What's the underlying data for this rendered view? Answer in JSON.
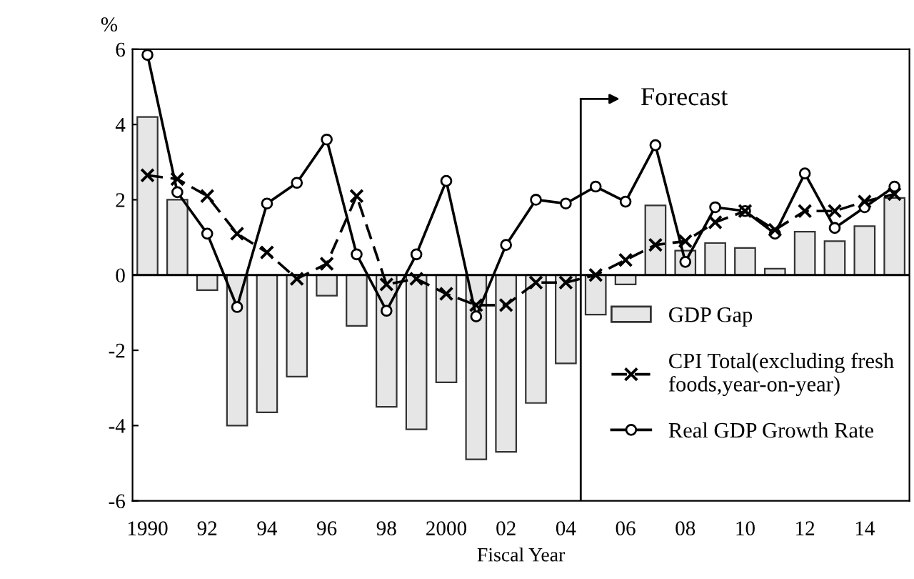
{
  "chart_data": {
    "type": "bar",
    "xlabel": "Fiscal Year",
    "ylabel": "%",
    "x": [
      1990,
      1991,
      1992,
      1993,
      1994,
      1995,
      1996,
      1997,
      1998,
      1999,
      2000,
      2001,
      2002,
      2003,
      2004,
      2005,
      2006,
      2007,
      2008,
      2009,
      2010,
      2011,
      2012,
      2013,
      2014,
      2015
    ],
    "xlim": [
      1989.5,
      2015.5
    ],
    "xticks": [
      {
        "value": 1990,
        "label": "1990"
      },
      {
        "value": 1992,
        "label": "92"
      },
      {
        "value": 1994,
        "label": "94"
      },
      {
        "value": 1996,
        "label": "96"
      },
      {
        "value": 1998,
        "label": "98"
      },
      {
        "value": 2000,
        "label": "2000"
      },
      {
        "value": 2002,
        "label": "02"
      },
      {
        "value": 2004,
        "label": "04"
      },
      {
        "value": 2006,
        "label": "06"
      },
      {
        "value": 2008,
        "label": "08"
      },
      {
        "value": 2010,
        "label": "10"
      },
      {
        "value": 2012,
        "label": "12"
      },
      {
        "value": 2014,
        "label": "14"
      }
    ],
    "ylim": [
      -6,
      6
    ],
    "yticks": [
      -6,
      -4,
      -2,
      0,
      2,
      4,
      6
    ],
    "grid": false,
    "legend": "right",
    "series": [
      {
        "name": "GDP Gap",
        "color": "#e6e6e6",
        "values": [
          4.2,
          2.0,
          -0.4,
          -4.0,
          -3.65,
          -2.7,
          -0.55,
          -1.35,
          -3.5,
          -4.1,
          -2.85,
          -4.9,
          -4.7,
          -3.4,
          -2.35,
          -1.05,
          -0.25,
          1.85,
          0.65,
          0.85,
          0.72,
          0.17,
          1.15,
          0.9,
          1.3,
          2.05
        ]
      },
      {
        "name": "CPI Total(excluding fresh\nfoods,year-on-year)",
        "type": "line",
        "color": "#000000",
        "marker": "cross",
        "line_style": "dashed",
        "values": [
          2.65,
          2.55,
          2.1,
          1.1,
          0.6,
          -0.1,
          0.3,
          2.1,
          -0.25,
          -0.1,
          -0.5,
          -0.8,
          -0.8,
          -0.2,
          -0.2,
          0.0,
          0.4,
          0.8,
          0.9,
          1.4,
          1.7,
          1.2,
          1.7,
          1.7,
          1.95,
          2.15
        ]
      },
      {
        "name": "Real GDP Growth Rate",
        "type": "line",
        "color": "#000000",
        "marker": "circle",
        "line_style": "solid",
        "values": [
          5.85,
          2.2,
          1.1,
          -0.85,
          1.9,
          2.45,
          3.6,
          0.55,
          -0.95,
          0.55,
          2.5,
          -1.1,
          0.8,
          2.0,
          1.9,
          2.35,
          1.95,
          3.45,
          0.35,
          1.8,
          1.7,
          1.1,
          2.7,
          1.25,
          1.8,
          2.35
        ]
      }
    ],
    "ref_lines": [
      {
        "axis": "y",
        "value": 0,
        "color": "#000000",
        "line_style": "solid"
      },
      {
        "axis": "x",
        "value": 2004.5,
        "label": "Forecast",
        "color": "#000000",
        "line_style": "solid"
      }
    ]
  }
}
